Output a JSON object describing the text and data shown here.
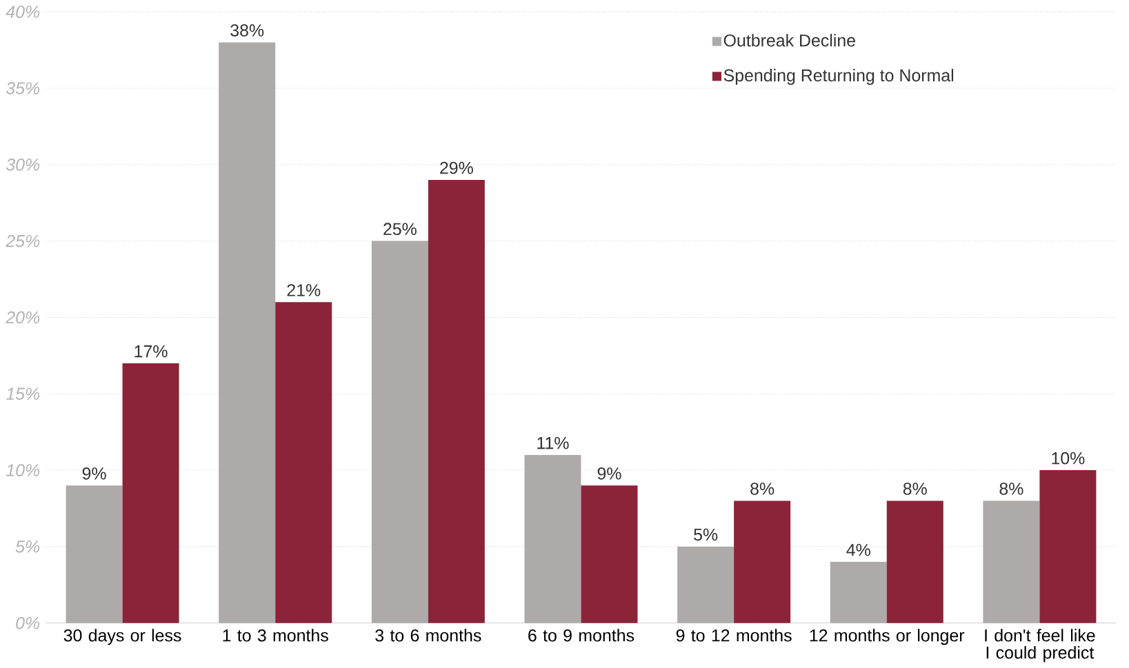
{
  "chart_data": {
    "type": "bar",
    "categories": [
      "30 days or less",
      "1 to 3 months",
      "3 to 6 months",
      "6 to 9 months",
      "9 to 12 months",
      "12 months or longer",
      "I don't feel like I could predict"
    ],
    "series": [
      {
        "name": "Outbreak Decline",
        "color": "#aeaaaa",
        "values": [
          9,
          38,
          25,
          11,
          5,
          4,
          8
        ],
        "value_labels": [
          "9%",
          "38%",
          "25%",
          "11%",
          "5%",
          "4%",
          "8%"
        ]
      },
      {
        "name": "Spending Returning to Normal",
        "color": "#8b2339",
        "values": [
          17,
          21,
          29,
          9,
          8,
          8,
          10
        ],
        "value_labels": [
          "17%",
          "21%",
          "29%",
          "9%",
          "8%",
          "8%",
          "10%"
        ]
      }
    ],
    "ylim": [
      0,
      40
    ],
    "yticks": [
      {
        "value": 0,
        "label": "0%"
      },
      {
        "value": 5,
        "label": "5%"
      },
      {
        "value": 10,
        "label": "10%"
      },
      {
        "value": 15,
        "label": "15%"
      },
      {
        "value": 20,
        "label": "20%"
      },
      {
        "value": 25,
        "label": "25%"
      },
      {
        "value": 30,
        "label": "30%"
      },
      {
        "value": 35,
        "label": "35%"
      },
      {
        "value": 40,
        "label": "40%"
      }
    ],
    "grid": "y",
    "legend": "top right"
  }
}
